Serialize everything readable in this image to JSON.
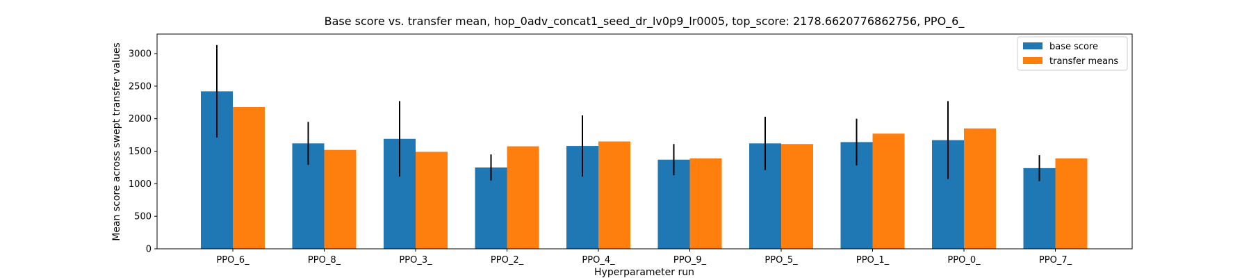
{
  "chart_data": {
    "type": "bar",
    "title": "Base score vs. transfer mean, hop_0adv_concat1_seed_dr_lv0p9_lr0005, top_score: 2178.6620776862756, PPO_6_",
    "xlabel": "Hyperparameter run",
    "ylabel": "Mean score across swept transfer values",
    "categories": [
      "PPO_6_",
      "PPO_8_",
      "PPO_3_",
      "PPO_2_",
      "PPO_4_",
      "PPO_9_",
      "PPO_5_",
      "PPO_1_",
      "PPO_0_",
      "PPO_7_"
    ],
    "ylim": [
      0,
      3300
    ],
    "yticks": [
      0,
      500,
      1000,
      1500,
      2000,
      2500,
      3000
    ],
    "grid": false,
    "legend_position": "top-right",
    "series": [
      {
        "name": "base score",
        "color": "#1f77b4",
        "values": [
          2420,
          1620,
          1690,
          1250,
          1580,
          1370,
          1620,
          1640,
          1670,
          1240
        ],
        "error": [
          710,
          330,
          580,
          200,
          470,
          240,
          410,
          360,
          600,
          200
        ]
      },
      {
        "name": "transfer means",
        "color": "#ff7f0e",
        "values": [
          2179,
          1520,
          1490,
          1575,
          1650,
          1390,
          1610,
          1770,
          1850,
          1390
        ]
      }
    ]
  }
}
